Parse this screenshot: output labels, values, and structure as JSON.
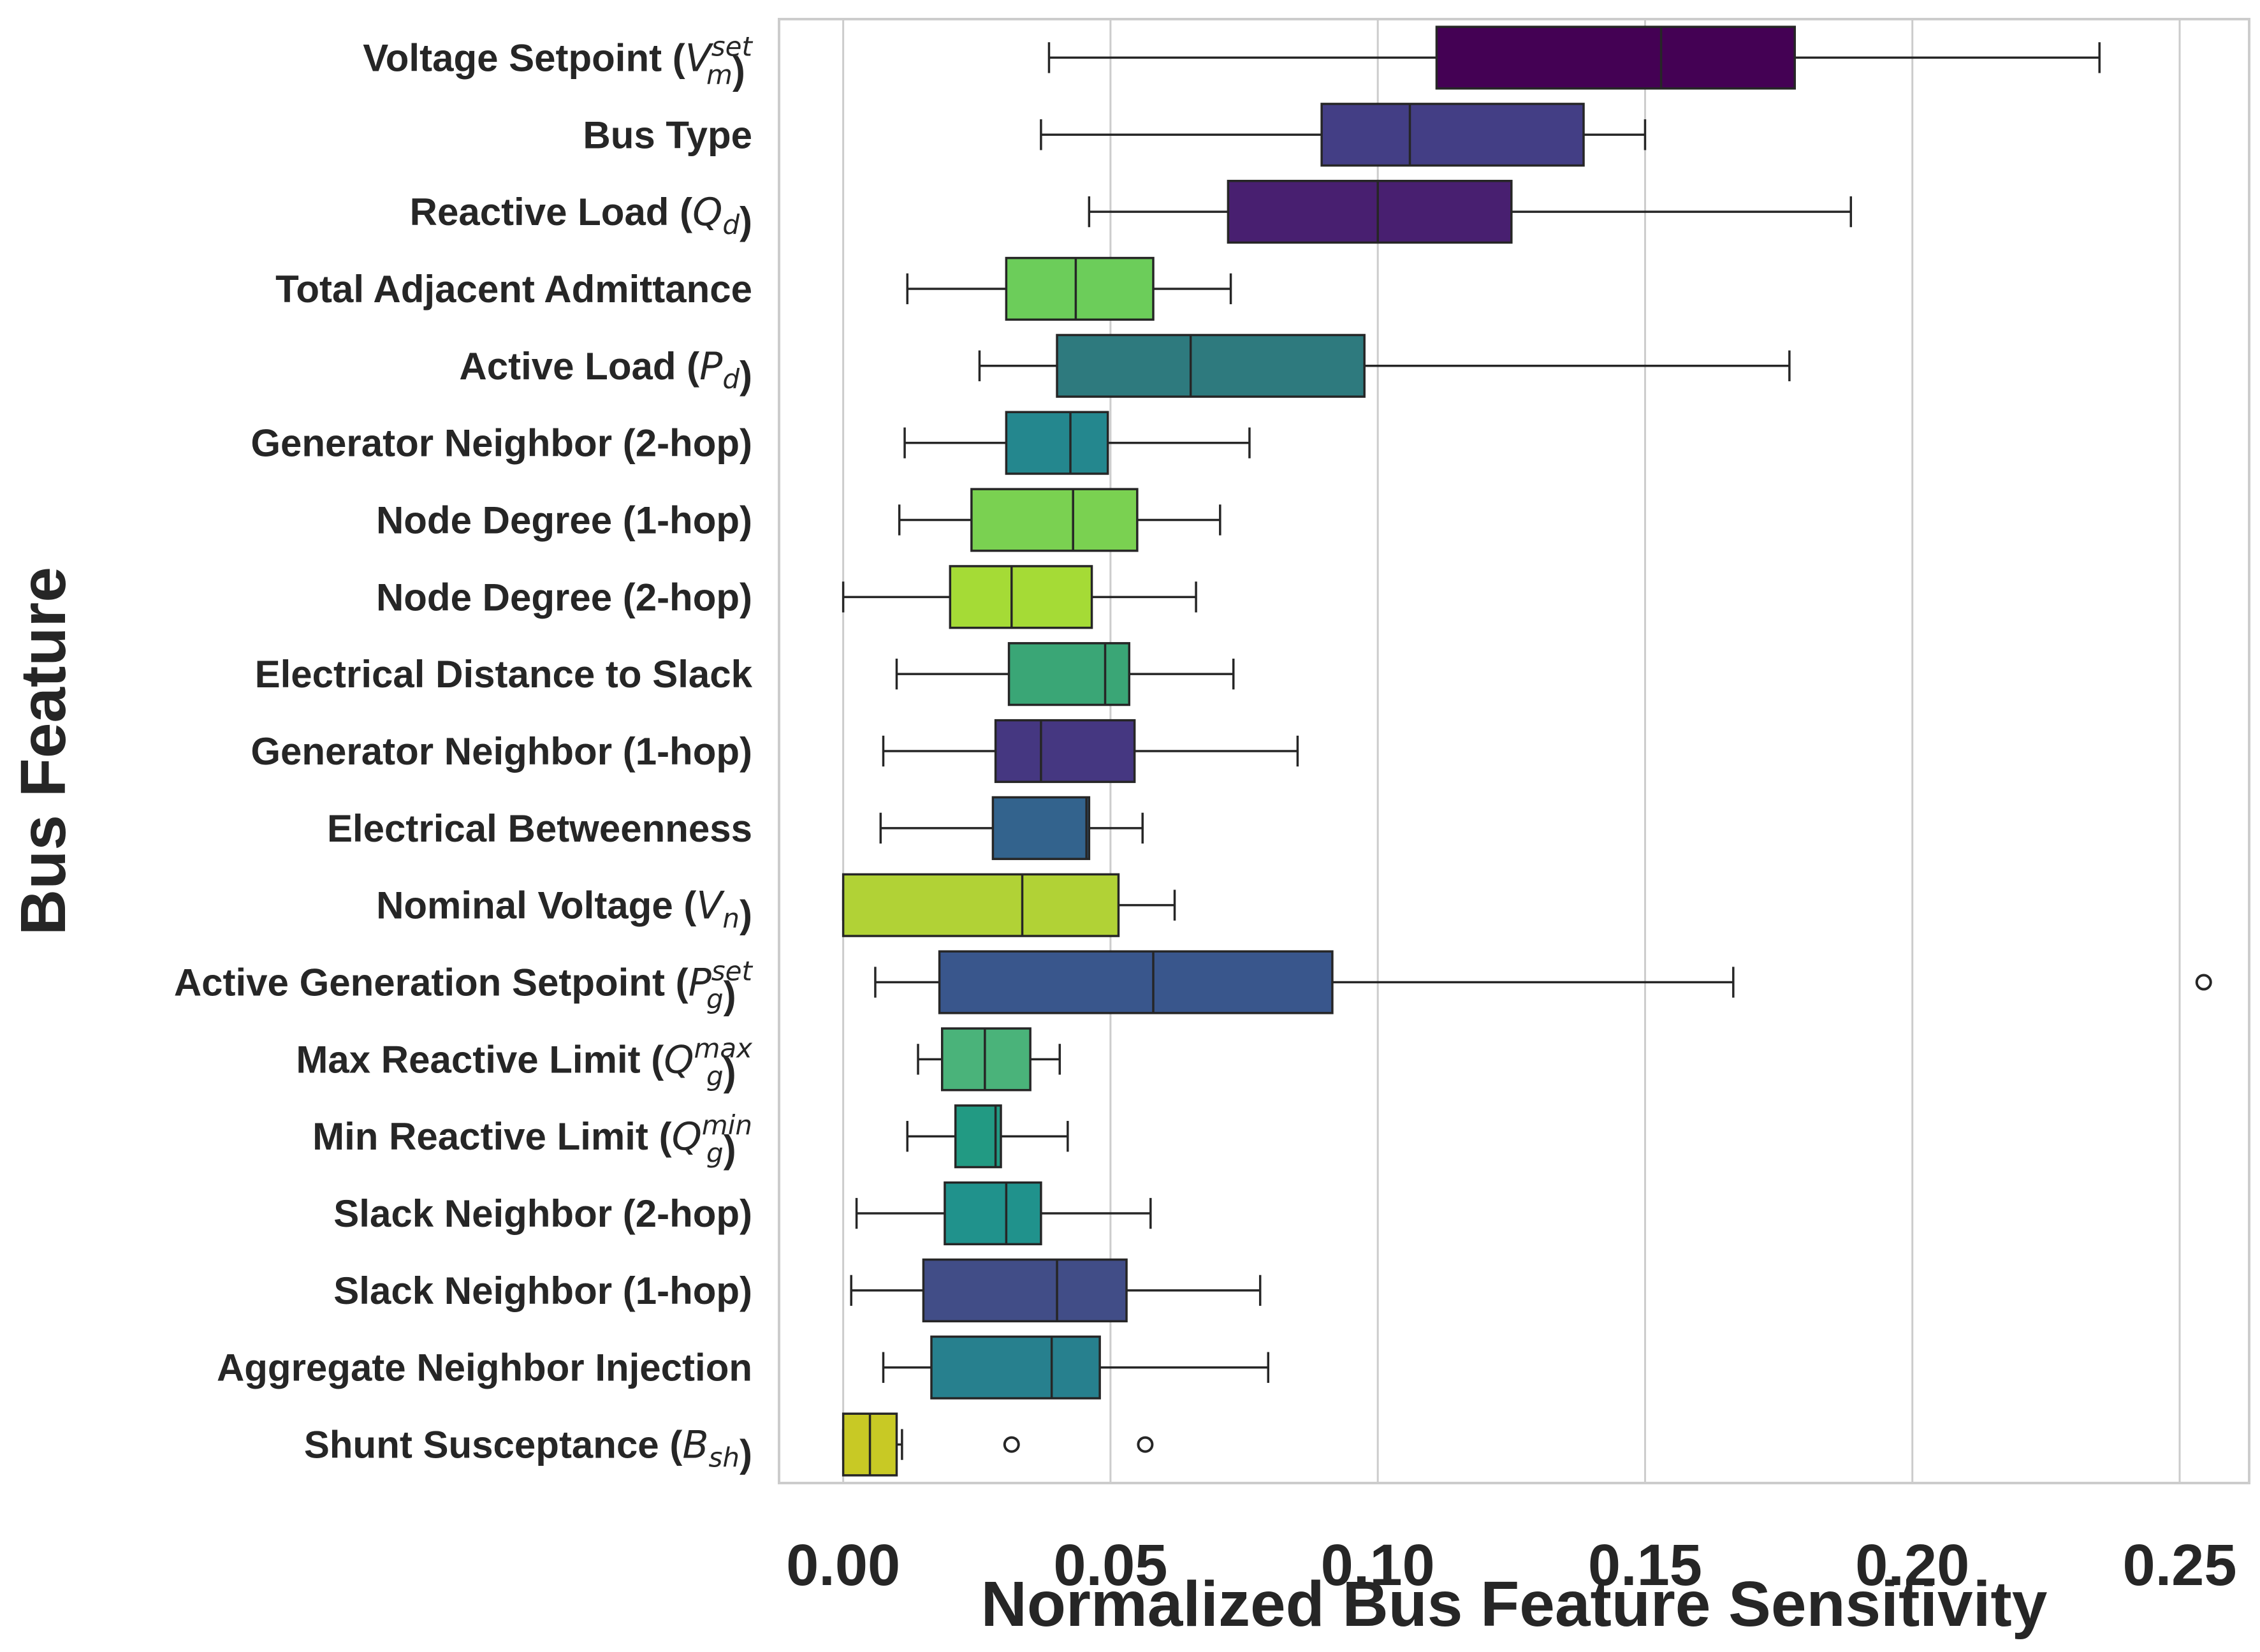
{
  "chart_data": {
    "type": "boxplot",
    "orientation": "horizontal",
    "xlabel": "Normalized Bus Feature Sensitivity",
    "ylabel": "Bus Feature",
    "xlim": [
      -0.012,
      0.263
    ],
    "xticks": [
      0.0,
      0.05,
      0.1,
      0.15,
      0.2,
      0.25
    ],
    "xtick_labels": [
      "0.00",
      "0.05",
      "0.10",
      "0.15",
      "0.20",
      "0.25"
    ],
    "grid": "vertical",
    "categories": [
      {
        "label": "Voltage Setpoint (",
        "math": "V",
        "sub": "m",
        "sup": "set",
        "tail": ")",
        "whislo": 0.0385,
        "q1": 0.111,
        "med": 0.153,
        "q3": 0.178,
        "whishi": 0.235,
        "outliers": [],
        "color": "#440154"
      },
      {
        "label": "Bus Type",
        "whislo": 0.037,
        "q1": 0.0895,
        "med": 0.106,
        "q3": 0.1385,
        "whishi": 0.15,
        "outliers": [],
        "color": "#433e85"
      },
      {
        "label": "Reactive Load (",
        "math": "Q",
        "sub": "d",
        "tail": ")",
        "whislo": 0.046,
        "q1": 0.072,
        "med": 0.1,
        "q3": 0.125,
        "whishi": 0.1885,
        "outliers": [],
        "color": "#481f70"
      },
      {
        "label": "Total Adjacent Admittance",
        "whislo": 0.012,
        "q1": 0.0305,
        "med": 0.0435,
        "q3": 0.058,
        "whishi": 0.0725,
        "outliers": [],
        "color": "#6ccd5a"
      },
      {
        "label": "Active Load (",
        "math": "P",
        "sub": "d",
        "tail": ")",
        "whislo": 0.0255,
        "q1": 0.04,
        "med": 0.065,
        "q3": 0.0975,
        "whishi": 0.177,
        "outliers": [],
        "color": "#2e7a7e"
      },
      {
        "label": "Generator Neighbor (2-hop)",
        "whislo": 0.0115,
        "q1": 0.0305,
        "med": 0.0425,
        "q3": 0.0495,
        "whishi": 0.076,
        "outliers": [],
        "color": "#24878e"
      },
      {
        "label": "Node Degree (1-hop)",
        "whislo": 0.0105,
        "q1": 0.024,
        "med": 0.043,
        "q3": 0.055,
        "whishi": 0.0705,
        "outliers": [],
        "color": "#7ad151"
      },
      {
        "label": "Node Degree (2-hop)",
        "whislo": 0.0,
        "q1": 0.02,
        "med": 0.0315,
        "q3": 0.0465,
        "whishi": 0.066,
        "outliers": [],
        "color": "#a5db36"
      },
      {
        "label": "Electrical Distance to Slack",
        "whislo": 0.01,
        "q1": 0.031,
        "med": 0.049,
        "q3": 0.0535,
        "whishi": 0.073,
        "outliers": [],
        "color": "#3aa676"
      },
      {
        "label": "Generator Neighbor (1-hop)",
        "whislo": 0.0075,
        "q1": 0.0285,
        "med": 0.037,
        "q3": 0.0545,
        "whishi": 0.085,
        "outliers": [],
        "color": "#453781"
      },
      {
        "label": "Electrical Betweenness",
        "whislo": 0.007,
        "q1": 0.028,
        "med": 0.0455,
        "q3": 0.046,
        "whishi": 0.056,
        "outliers": [],
        "color": "#33638d"
      },
      {
        "label": "Nominal Voltage (",
        "math": "V",
        "sub": "n",
        "tail": ")",
        "whislo": 0.0,
        "q1": 0.0,
        "med": 0.0335,
        "q3": 0.0515,
        "whishi": 0.062,
        "outliers": [],
        "color": "#b1d236"
      },
      {
        "label": "Active Generation Setpoint (",
        "math": "P",
        "sub": "g",
        "sup": "set",
        "tail": ")",
        "whislo": 0.006,
        "q1": 0.018,
        "med": 0.058,
        "q3": 0.0915,
        "whishi": 0.1665,
        "outliers": [
          0.2545
        ],
        "color": "#39568c"
      },
      {
        "label": "Max Reactive Limit (",
        "math": "Q",
        "sub": "g",
        "sup": "max",
        "tail": ")",
        "whislo": 0.014,
        "q1": 0.0185,
        "med": 0.0265,
        "q3": 0.035,
        "whishi": 0.0405,
        "outliers": [],
        "color": "#4ab37a"
      },
      {
        "label": "Min Reactive Limit (",
        "math": "Q",
        "sub": "g",
        "sup": "min",
        "tail": ")",
        "whislo": 0.012,
        "q1": 0.021,
        "med": 0.0285,
        "q3": 0.0295,
        "whishi": 0.042,
        "outliers": [],
        "color": "#229a83"
      },
      {
        "label": "Slack Neighbor (2-hop)",
        "whislo": 0.0025,
        "q1": 0.019,
        "med": 0.0305,
        "q3": 0.037,
        "whishi": 0.0575,
        "outliers": [],
        "color": "#20928c"
      },
      {
        "label": "Slack Neighbor (1-hop)",
        "whislo": 0.0015,
        "q1": 0.015,
        "med": 0.04,
        "q3": 0.053,
        "whishi": 0.078,
        "outliers": [],
        "color": "#414d87"
      },
      {
        "label": "Aggregate Neighbor Injection",
        "whislo": 0.0075,
        "q1": 0.0165,
        "med": 0.039,
        "q3": 0.048,
        "whishi": 0.0795,
        "outliers": [],
        "color": "#27808e"
      },
      {
        "label": "Shunt Susceptance (",
        "math": "B",
        "sub": "sh",
        "tail": ")",
        "whislo": 0.0,
        "q1": 0.0,
        "med": 0.005,
        "q3": 0.01,
        "whishi": 0.011,
        "outliers": [
          0.0315,
          0.0565
        ],
        "color": "#c8c925"
      }
    ]
  }
}
